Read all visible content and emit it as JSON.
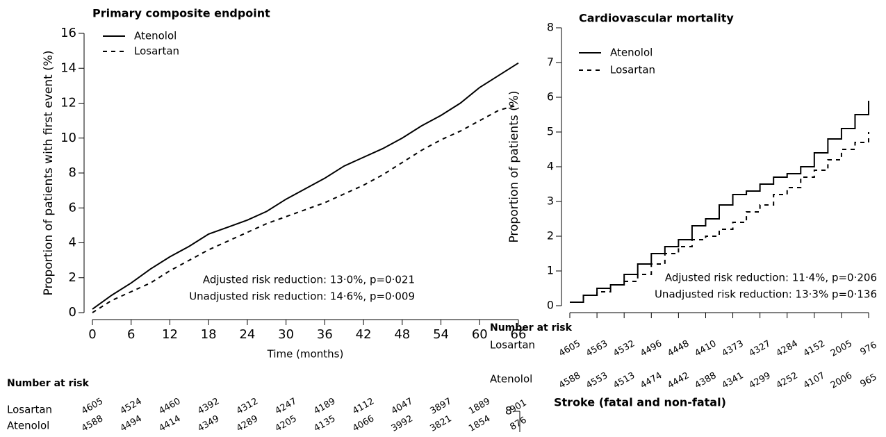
{
  "chart_data": [
    {
      "type": "line",
      "title": "Primary composite endpoint",
      "y_label": "Proportion of patients with first event (%)",
      "x_label": "Time (months)",
      "step": false,
      "x": [
        0,
        3,
        6,
        9,
        12,
        15,
        18,
        21,
        24,
        27,
        30,
        33,
        36,
        39,
        42,
        45,
        48,
        51,
        54,
        57,
        60,
        63,
        66
      ],
      "series": [
        {
          "name": "Atenolol",
          "color": "#000000",
          "style": "solid",
          "values": [
            0.2,
            1.0,
            1.7,
            2.5,
            3.2,
            3.8,
            4.5,
            4.9,
            5.3,
            5.8,
            6.5,
            7.1,
            7.7,
            8.4,
            8.9,
            9.4,
            10.0,
            10.7,
            11.3,
            12.0,
            12.9,
            13.6,
            14.3
          ]
        },
        {
          "name": "Losartan",
          "color": "#000000",
          "style": "dashed",
          "values": [
            0.0,
            0.7,
            1.2,
            1.7,
            2.4,
            3.0,
            3.6,
            4.1,
            4.6,
            5.1,
            5.5,
            5.9,
            6.3,
            6.8,
            7.3,
            7.9,
            8.6,
            9.3,
            9.9,
            10.4,
            11.0,
            11.6,
            11.9
          ]
        }
      ],
      "xlim": [
        0,
        66
      ],
      "xticks": [
        0,
        6,
        12,
        18,
        24,
        30,
        36,
        42,
        48,
        54,
        60,
        66
      ],
      "xtick_labels": true,
      "ylim": [
        0,
        16
      ],
      "yticks": [
        0,
        2,
        4,
        6,
        8,
        10,
        12,
        14,
        16
      ],
      "annotations": [
        "Adjusted risk reduction: 13·0%, p=0·021",
        "Unadjusted risk reduction: 14·6%, p=0·009"
      ],
      "risk_table": {
        "title": "Number at risk",
        "rows": [
          {
            "name": "Losartan",
            "values": [
              "4605",
              "4524",
              "4460",
              "4392",
              "4312",
              "4247",
              "4189",
              "4112",
              "4047",
              "3897",
              "1889",
              "901"
            ]
          },
          {
            "name": "Atenolol",
            "values": [
              "4588",
              "4494",
              "4414",
              "4349",
              "4289",
              "4205",
              "4135",
              "4066",
              "3992",
              "3821",
              "1854",
              "876"
            ]
          }
        ]
      }
    },
    {
      "type": "line",
      "title": "Cardiovascular mortality",
      "y_label": "Proportion of patients (%)",
      "step": true,
      "x": [
        0,
        3,
        6,
        9,
        12,
        15,
        18,
        21,
        24,
        27,
        30,
        33,
        36,
        39,
        42,
        45,
        48,
        51,
        54,
        57,
        60,
        63,
        66
      ],
      "series": [
        {
          "name": "Atenolol",
          "color": "#000000",
          "style": "solid",
          "values": [
            0.1,
            0.3,
            0.5,
            0.6,
            0.9,
            1.2,
            1.5,
            1.7,
            1.9,
            2.3,
            2.5,
            2.9,
            3.2,
            3.3,
            3.5,
            3.7,
            3.8,
            4.0,
            4.4,
            4.8,
            5.1,
            5.5,
            5.9
          ]
        },
        {
          "name": "Losartan",
          "color": "#000000",
          "style": "dashed",
          "values": [
            0.1,
            0.3,
            0.4,
            0.6,
            0.7,
            0.9,
            1.2,
            1.5,
            1.7,
            1.9,
            2.0,
            2.2,
            2.4,
            2.7,
            2.9,
            3.2,
            3.4,
            3.7,
            3.9,
            4.2,
            4.5,
            4.7,
            5.0
          ]
        }
      ],
      "xlim": [
        0,
        66
      ],
      "xticks": [
        0,
        6,
        12,
        18,
        24,
        30,
        36,
        42,
        48,
        54,
        60,
        66
      ],
      "xtick_labels": false,
      "ylim": [
        0,
        8
      ],
      "yticks": [
        0,
        1,
        2,
        3,
        4,
        5,
        6,
        7,
        8
      ],
      "annotations": [
        "Adjusted risk reduction: 11·4%, p=0·206",
        "Unadjusted risk reduction: 13·3% p=0·136"
      ],
      "risk_table": {
        "title": "Number at risk",
        "rows": [
          {
            "name": "Losartan",
            "values": [
              "4605",
              "4563",
              "4532",
              "4496",
              "4448",
              "4410",
              "4373",
              "4327",
              "4284",
              "4152",
              "2005",
              "976"
            ]
          },
          {
            "name": "Atenolol",
            "values": [
              "4588",
              "4553",
              "4513",
              "4474",
              "4442",
              "4388",
              "4341",
              "4299",
              "4252",
              "4107",
              "2006",
              "965"
            ]
          }
        ]
      }
    },
    {
      "type": "line",
      "title": "Stroke (fatal and non-fatal)",
      "ylim": [
        0,
        8
      ],
      "yticks": [
        8
      ]
    }
  ]
}
